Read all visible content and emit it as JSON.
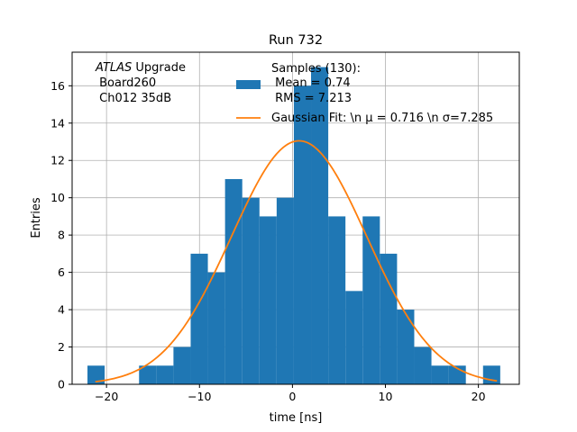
{
  "chart_data": {
    "type": "bar",
    "title": "Run 732",
    "xlabel": "time [ns]",
    "ylabel": "Entries",
    "xlim": [
      -23.7,
      24.4
    ],
    "ylim": [
      0,
      17.8
    ],
    "xticks": [
      -20,
      -10,
      0,
      10,
      20
    ],
    "xtick_labels": [
      "−20",
      "−10",
      "0",
      "10",
      "20"
    ],
    "yticks": [
      0,
      2,
      4,
      6,
      8,
      10,
      12,
      14,
      16
    ],
    "ytick_labels": [
      "0",
      "2",
      "4",
      "6",
      "8",
      "10",
      "12",
      "14",
      "16"
    ],
    "grid": true,
    "bin_width": 1.85,
    "bin_left_edge": -22.05,
    "bins": [
      {
        "x_left": -22.05,
        "value": 1
      },
      {
        "x_left": -20.2,
        "value": 0
      },
      {
        "x_left": -18.35,
        "value": 0
      },
      {
        "x_left": -16.5,
        "value": 1
      },
      {
        "x_left": -14.65,
        "value": 1
      },
      {
        "x_left": -12.8,
        "value": 2
      },
      {
        "x_left": -10.95,
        "value": 7
      },
      {
        "x_left": -9.1,
        "value": 6
      },
      {
        "x_left": -7.25,
        "value": 11
      },
      {
        "x_left": -5.4,
        "value": 10
      },
      {
        "x_left": -3.55,
        "value": 9
      },
      {
        "x_left": -1.7,
        "value": 10
      },
      {
        "x_left": 0.15,
        "value": 16
      },
      {
        "x_left": 2.0,
        "value": 17
      },
      {
        "x_left": 3.85,
        "value": 9
      },
      {
        "x_left": 5.7,
        "value": 5
      },
      {
        "x_left": 7.55,
        "value": 9
      },
      {
        "x_left": 9.4,
        "value": 7
      },
      {
        "x_left": 11.25,
        "value": 4
      },
      {
        "x_left": 13.1,
        "value": 2
      },
      {
        "x_left": 14.95,
        "value": 1
      },
      {
        "x_left": 16.8,
        "value": 1
      },
      {
        "x_left": 18.65,
        "value": 0
      },
      {
        "x_left": 20.5,
        "value": 1
      }
    ],
    "fit": {
      "type": "gaussian",
      "mu": 0.716,
      "sigma": 7.285,
      "amplitude": 13.05,
      "x_range": [
        -21.2,
        22.0
      ]
    },
    "legend": {
      "location": "upper-right",
      "entries": [
        {
          "kind": "patch",
          "lines": [
            "Samples (130):",
            " Mean = 0.74",
            " RMS = 7.213"
          ]
        },
        {
          "kind": "line",
          "text": "Gaussian Fit: \\n μ = 0.716 \\n σ=7.285"
        }
      ]
    },
    "annotation": {
      "italic": "ATLAS",
      "rest": " Upgrade",
      "lines": [
        " Board260",
        " Ch012 35dB"
      ]
    },
    "colors": {
      "bars": "#1f77b4",
      "fit": "#ff7f0e",
      "grid": "#b0b0b0",
      "axes": "#000000"
    }
  }
}
